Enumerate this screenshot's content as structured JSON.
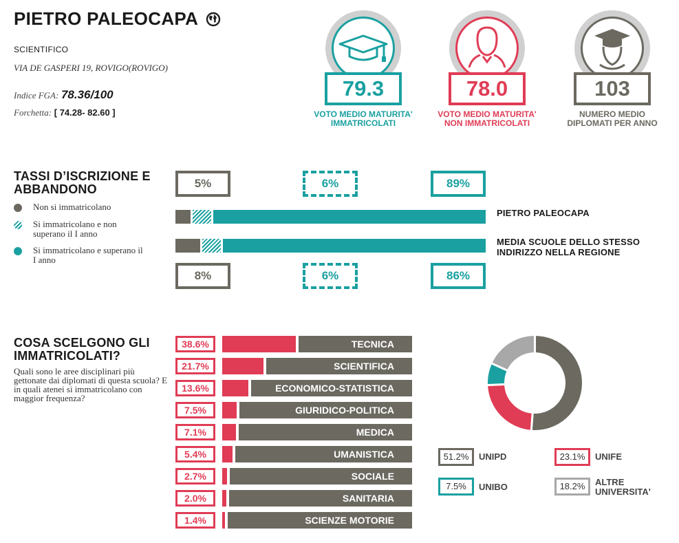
{
  "header": {
    "school_name": "PIETRO PALEOCAPA",
    "school_type": "SCIENTIFICO",
    "address": "VIA DE GASPERI 19, ROVIGO(ROVIGO)",
    "fga_label": "Indice FGA:",
    "fga_value": "78.36/100",
    "fork_label": "Forchetta:",
    "fork_value": "[ 74.28- 82.60 ]",
    "globe_icon": "globe-icon"
  },
  "stats": [
    {
      "value": "79.3",
      "caption1": "VOTO MEDIO MATURITA'",
      "caption2": "IMMATRICOLATI",
      "color": "#1aa0a0",
      "icon": "graduation-cap-icon"
    },
    {
      "value": "78.0",
      "caption1": "VOTO MEDIO MATURITA'",
      "caption2": "NON IMMATRICOLATI",
      "color": "#e03c55",
      "icon": "person-icon"
    },
    {
      "value": "103",
      "caption1": "NUMERO MEDIO",
      "caption2": "DIPLOMATI PER ANNO",
      "color": "#6b6960",
      "icon": "graduate-person-icon"
    }
  ],
  "enrollment": {
    "title1": "TASSI D’ISCRIZIONE E",
    "title2": "ABBANDONO",
    "legend": [
      {
        "label": "Non si immatricolano",
        "color": "#6b6960"
      },
      {
        "label": "Si immatricolano e non superano il I anno",
        "color": "#1aa0a0"
      },
      {
        "label": "Si immatricolano e superano il I anno",
        "color": "#1aa0a0"
      }
    ],
    "school_row_label": "PIETRO PALEOCAPA",
    "region_row_label1": "MEDIA SCUOLE DELLO STESSO",
    "region_row_label2": "INDIRIZZO NELLA REGIONE"
  },
  "fields_section": {
    "title1": "COSA SCELGONO GLI",
    "title2": "IMMATRICOLATI?",
    "intro": "Quali sono le aree disciplinari più gettonate dai diplomati di questa scuola? E in quali atenei si immatricolano con maggior frequenza?"
  },
  "chart_data": [
    {
      "type": "bar",
      "stacked": true,
      "orientation": "horizontal",
      "categories": [
        "PIETRO PALEOCAPA",
        "MEDIA SCUOLE DELLO STESSO INDIRIZZO NELLA REGIONE"
      ],
      "series": [
        {
          "name": "Non si immatricolano",
          "values": [
            5,
            8
          ],
          "labels": [
            "5%",
            "8%"
          ],
          "color": "#6b6960"
        },
        {
          "name": "Si immatricolano e non superano il I anno",
          "values": [
            6,
            6
          ],
          "labels": [
            "6%",
            "6%"
          ],
          "color": "#1aa0a0"
        },
        {
          "name": "Si immatricolano e superano il I anno",
          "values": [
            89,
            86
          ],
          "labels": [
            "89%",
            "86%"
          ],
          "color": "#1aa0a0"
        }
      ]
    },
    {
      "type": "bar",
      "orientation": "horizontal",
      "categories": [
        "TECNICA",
        "SCIENTIFICA",
        "ECONOMICO-STATISTICA",
        "GIURIDICO-POLITICA",
        "MEDICA",
        "UMANISTICA",
        "SOCIALE",
        "SANITARIA",
        "SCIENZE MOTORIE"
      ],
      "values": [
        38.6,
        21.7,
        13.6,
        7.5,
        7.1,
        5.4,
        2.7,
        2.0,
        1.4
      ],
      "labels": [
        "38.6%",
        "21.7%",
        "13.6%",
        "7.5%",
        "7.1%",
        "5.4%",
        "2.7%",
        "2.0%",
        "1.4%"
      ],
      "xlim": [
        0,
        100
      ],
      "color": "#e03c55"
    },
    {
      "type": "pie",
      "donut": true,
      "labels": [
        "UNIPD",
        "UNIFE",
        "UNIBO",
        "ALTRE UNIVERSITA'"
      ],
      "values": [
        51.2,
        23.1,
        7.5,
        18.2
      ],
      "value_labels": [
        "51.2%",
        "23.1%",
        "7.5%",
        "18.2%"
      ],
      "colors": [
        "#6b6960",
        "#e03c55",
        "#1aa0a0",
        "#a8a8a8"
      ]
    }
  ]
}
